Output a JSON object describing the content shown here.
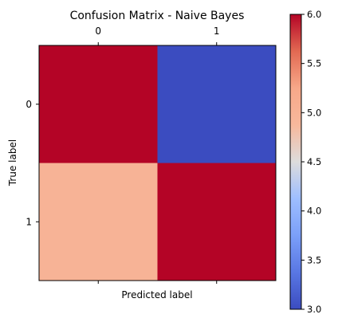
{
  "chart_data": {
    "type": "heatmap",
    "title": "Confusion Matrix - Naive Bayes",
    "xlabel": "Predicted label",
    "ylabel": "True label",
    "x_categories": [
      "0",
      "1"
    ],
    "y_categories": [
      "0",
      "1"
    ],
    "values": [
      [
        6,
        3
      ],
      [
        5,
        6
      ]
    ],
    "colormap": "coolwarm",
    "vmin": 3.0,
    "vmax": 6.0,
    "x_tick_position": "top",
    "colorbar": {
      "ticks": [
        "3.0",
        "3.5",
        "4.0",
        "4.5",
        "5.0",
        "5.5",
        "6.0"
      ]
    }
  }
}
